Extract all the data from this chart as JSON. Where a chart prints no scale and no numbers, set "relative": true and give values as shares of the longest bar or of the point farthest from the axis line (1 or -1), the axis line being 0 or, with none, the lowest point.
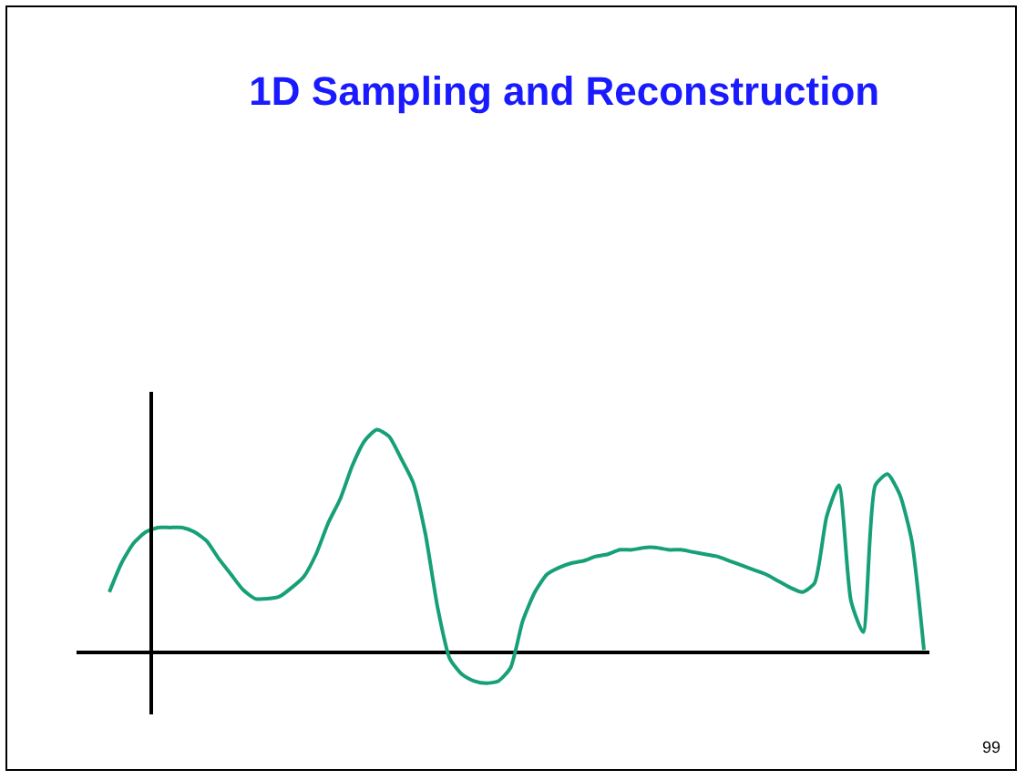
{
  "chart_data": {
    "type": "line",
    "title": "1D Sampling and Reconstruction",
    "relative": true,
    "color": "#17a078",
    "categories": [
      null,
      null,
      null,
      null,
      null,
      null,
      null,
      null,
      null,
      null,
      null,
      null,
      null,
      null,
      null,
      null,
      null,
      null,
      null,
      null,
      null,
      null,
      null,
      null,
      null,
      null,
      null,
      null,
      null,
      null,
      null,
      null,
      null,
      null,
      null,
      null,
      null,
      null,
      null,
      null,
      null,
      null,
      null,
      null,
      null,
      null,
      null,
      null,
      null,
      null,
      null,
      null,
      null,
      null,
      null,
      null,
      null,
      null,
      null,
      null,
      null,
      null,
      null,
      null,
      null,
      null,
      null,
      null
    ],
    "values": [
      0.27,
      0.4,
      0.49,
      0.54,
      0.56,
      0.56,
      0.56,
      0.54,
      0.5,
      0.42,
      0.35,
      0.28,
      0.24,
      0.24,
      0.25,
      0.29,
      0.34,
      0.44,
      0.58,
      0.69,
      0.84,
      0.95,
      1,
      0.97,
      0.87,
      0.76,
      0.53,
      0.2,
      -0.03,
      -0.1,
      -0.13,
      -0.14,
      -0.13,
      -0.07,
      0.14,
      0.27,
      0.35,
      0.38,
      0.4,
      0.41,
      0.43,
      0.44,
      0.46,
      0.46,
      0.47,
      0.47,
      0.46,
      0.46,
      0.45,
      0.44,
      0.43,
      0.41,
      0.39,
      0.37,
      0.35,
      0.32,
      0.29,
      0.27,
      0.31,
      0.61,
      0.75,
      0.23,
      0.09,
      0.75,
      0.8,
      0.71,
      0.5,
      0.01
    ],
    "annotations": [
      "99"
    ]
  }
}
